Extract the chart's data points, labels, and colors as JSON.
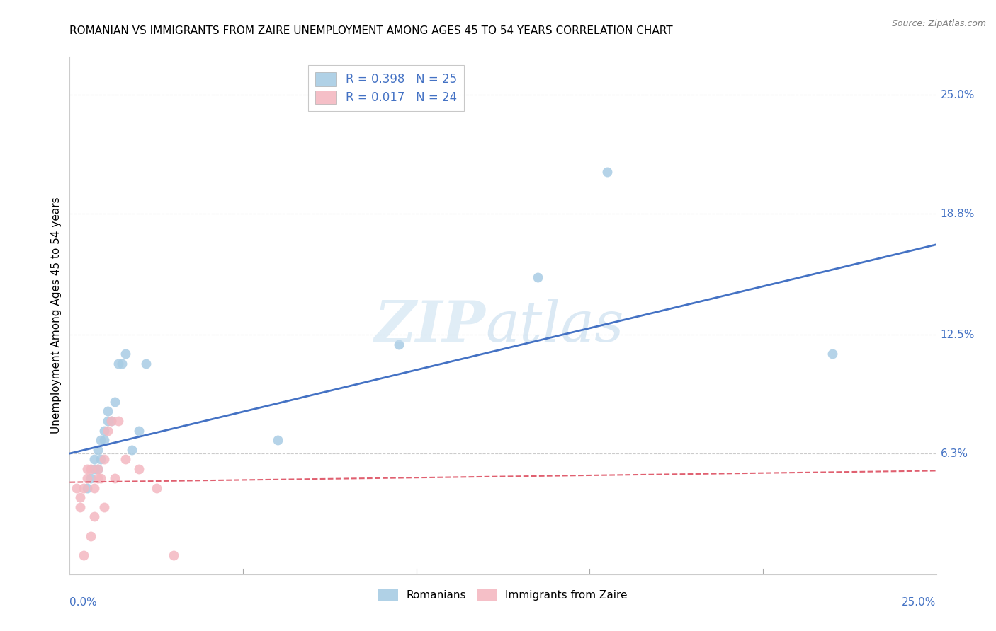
{
  "title": "ROMANIAN VS IMMIGRANTS FROM ZAIRE UNEMPLOYMENT AMONG AGES 45 TO 54 YEARS CORRELATION CHART",
  "source": "Source: ZipAtlas.com",
  "ylabel": "Unemployment Among Ages 45 to 54 years",
  "xlim": [
    0.0,
    0.25
  ],
  "ylim": [
    0.0,
    0.27
  ],
  "ytick_labels": [
    "6.3%",
    "12.5%",
    "18.8%",
    "25.0%"
  ],
  "ytick_vals": [
    0.063,
    0.125,
    0.188,
    0.25
  ],
  "blue_color": "#a8cce4",
  "pink_color": "#f4b8c1",
  "blue_line_color": "#4472c4",
  "pink_line_color": "#e06070",
  "grid_color": "#cccccc",
  "legend_R1": "R = 0.398",
  "legend_N1": "N = 25",
  "legend_R2": "R = 0.017",
  "legend_N2": "N = 24",
  "romanians_x": [
    0.005,
    0.006,
    0.007,
    0.007,
    0.008,
    0.008,
    0.009,
    0.009,
    0.01,
    0.01,
    0.011,
    0.011,
    0.012,
    0.013,
    0.014,
    0.015,
    0.016,
    0.018,
    0.02,
    0.022,
    0.06,
    0.095,
    0.135,
    0.155,
    0.22
  ],
  "romanians_y": [
    0.045,
    0.05,
    0.055,
    0.06,
    0.055,
    0.065,
    0.06,
    0.07,
    0.07,
    0.075,
    0.08,
    0.085,
    0.08,
    0.09,
    0.11,
    0.11,
    0.115,
    0.065,
    0.075,
    0.11,
    0.07,
    0.12,
    0.155,
    0.21,
    0.115
  ],
  "zaire_x": [
    0.002,
    0.003,
    0.003,
    0.004,
    0.004,
    0.005,
    0.005,
    0.006,
    0.006,
    0.007,
    0.007,
    0.008,
    0.008,
    0.009,
    0.01,
    0.01,
    0.011,
    0.012,
    0.013,
    0.014,
    0.016,
    0.02,
    0.025,
    0.03
  ],
  "zaire_y": [
    0.045,
    0.035,
    0.04,
    0.045,
    0.01,
    0.05,
    0.055,
    0.02,
    0.055,
    0.03,
    0.045,
    0.05,
    0.055,
    0.05,
    0.035,
    0.06,
    0.075,
    0.08,
    0.05,
    0.08,
    0.06,
    0.055,
    0.045,
    0.01
  ],
  "blue_trendline_x": [
    0.0,
    0.25
  ],
  "blue_trendline_y": [
    0.063,
    0.172
  ],
  "pink_trendline_x": [
    0.0,
    0.25
  ],
  "pink_trendline_y": [
    0.048,
    0.054
  ],
  "title_fontsize": 11,
  "axis_label_fontsize": 11,
  "tick_fontsize": 11,
  "source_fontsize": 9,
  "marker_size": 100
}
